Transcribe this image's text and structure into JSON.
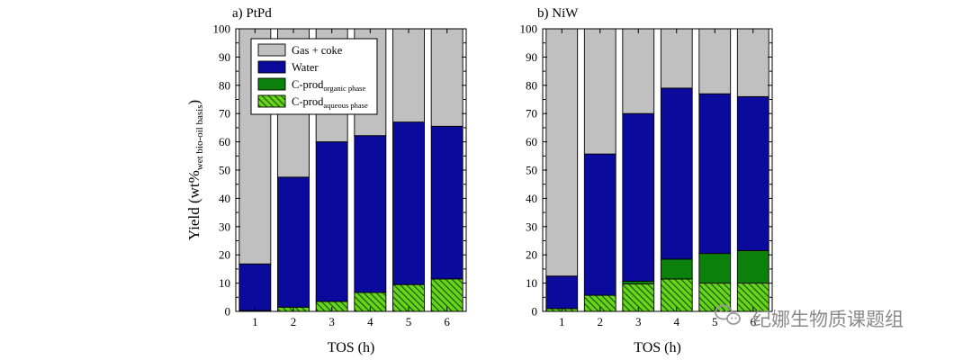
{
  "colors": {
    "gas": "#c0c0c0",
    "water": "#0a0a9c",
    "organic": "#0b800b",
    "aqueous_fill": "#6fd21a",
    "aqueous_hatch": "#0b660b",
    "axis": "#000000"
  },
  "chart_data": [
    {
      "type": "bar",
      "stacked": true,
      "title": "a) PtPd",
      "xlabel": "TOS (h)",
      "ylabel_main": "Yield (wt%",
      "ylabel_sub": "wet bio-oil basis",
      "ylabel_close": ")",
      "ylim": [
        0,
        100
      ],
      "yticks": [
        "0",
        "10",
        "20",
        "30",
        "40",
        "50",
        "60",
        "70",
        "80",
        "90",
        "100"
      ],
      "categories": [
        "1",
        "2",
        "3",
        "4",
        "5",
        "6"
      ],
      "series": [
        {
          "name": "C-prod aqueous phase",
          "key": "aqueous",
          "values": [
            0.3,
            1.5,
            3.5,
            6.7,
            9.5,
            11.5
          ]
        },
        {
          "name": "C-prod organic phase",
          "key": "organic",
          "values": [
            0,
            0,
            0,
            0,
            0,
            0
          ]
        },
        {
          "name": "Water",
          "key": "water",
          "values": [
            16.5,
            46.0,
            56.5,
            55.5,
            57.5,
            54.0
          ]
        },
        {
          "name": "Gas + coke",
          "key": "gas",
          "values": [
            83.2,
            52.5,
            40.0,
            37.8,
            33.0,
            34.5
          ]
        }
      ],
      "legend": {
        "position": "top-left",
        "items": [
          {
            "key": "gas",
            "label": "Gas + coke",
            "sub": ""
          },
          {
            "key": "water",
            "label": "Water",
            "sub": ""
          },
          {
            "key": "organic",
            "label": "C-prod",
            "sub": "organic phase"
          },
          {
            "key": "aqueous",
            "label": "C-prod",
            "sub": "aqueous phase"
          }
        ]
      }
    },
    {
      "type": "bar",
      "stacked": true,
      "title": "b) NiW",
      "xlabel": "TOS (h)",
      "ylim": [
        0,
        100
      ],
      "yticks": [
        "0",
        "10",
        "20",
        "30",
        "40",
        "50",
        "60",
        "70",
        "80",
        "90",
        "100"
      ],
      "categories": [
        "1",
        "2",
        "3",
        "4",
        "5",
        "6"
      ],
      "series": [
        {
          "name": "C-prod aqueous phase",
          "key": "aqueous",
          "values": [
            1.0,
            5.7,
            9.7,
            11.5,
            10.0,
            10.0
          ]
        },
        {
          "name": "C-prod organic phase",
          "key": "organic",
          "values": [
            0,
            0,
            1.0,
            7.0,
            10.5,
            11.5
          ]
        },
        {
          "name": "Water",
          "key": "water",
          "values": [
            11.5,
            50.0,
            59.3,
            60.5,
            56.5,
            54.5
          ]
        },
        {
          "name": "Gas + coke",
          "key": "gas",
          "values": [
            87.5,
            44.3,
            30.0,
            21.0,
            23.0,
            24.0
          ]
        }
      ]
    }
  ],
  "watermark": {
    "text": "纪娜生物质课题组",
    "icon": "wechat-icon"
  }
}
